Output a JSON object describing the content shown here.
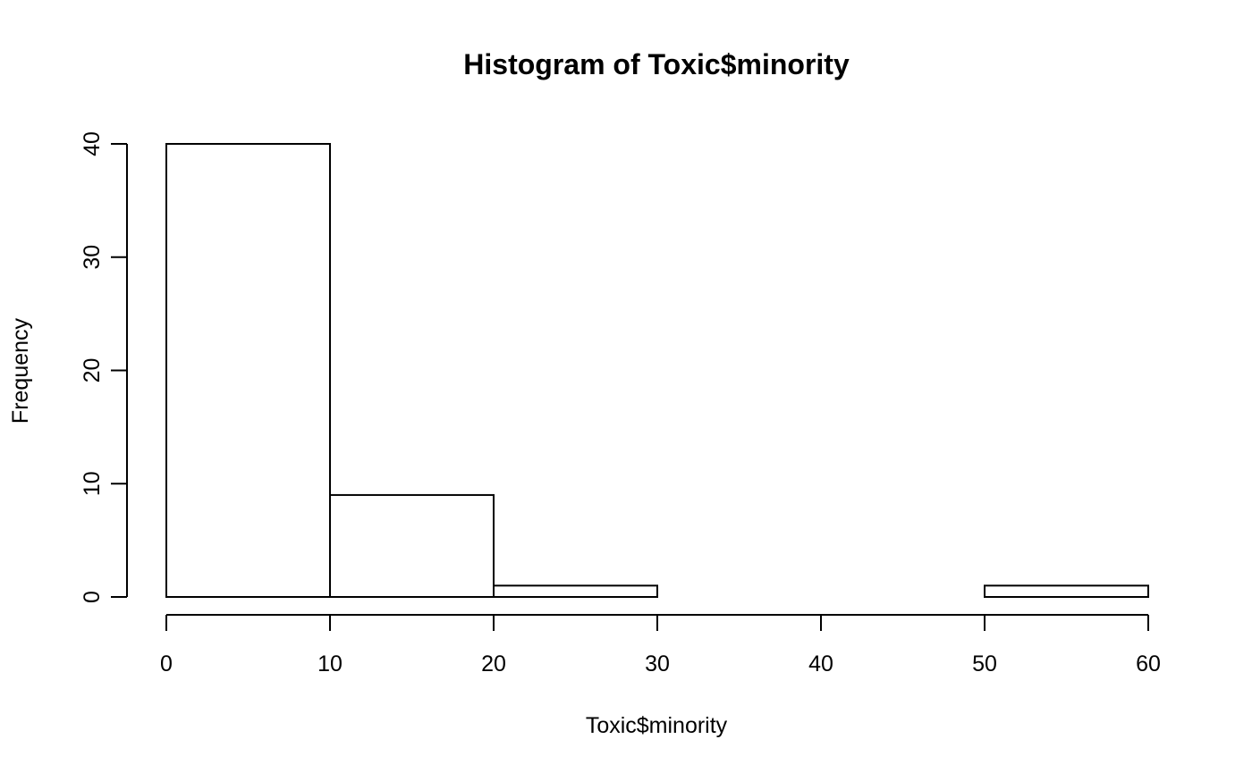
{
  "chart_data": {
    "type": "bar",
    "title": "Histogram of Toxic$minority",
    "xlabel": "Toxic$minority",
    "ylabel": "Frequency",
    "bins": [
      {
        "from": 0,
        "to": 10,
        "count": 40
      },
      {
        "from": 10,
        "to": 20,
        "count": 9
      },
      {
        "from": 20,
        "to": 30,
        "count": 1
      },
      {
        "from": 30,
        "to": 40,
        "count": 0
      },
      {
        "from": 40,
        "to": 50,
        "count": 0
      },
      {
        "from": 50,
        "to": 60,
        "count": 1
      }
    ],
    "xlim": [
      0,
      60
    ],
    "ylim": [
      0,
      40
    ],
    "xticks": [
      0,
      10,
      20,
      30,
      40,
      50,
      60
    ],
    "yticks": [
      0,
      10,
      20,
      30,
      40
    ],
    "grid": false,
    "bar_fill": "#ffffff",
    "bar_stroke": "#000000"
  }
}
